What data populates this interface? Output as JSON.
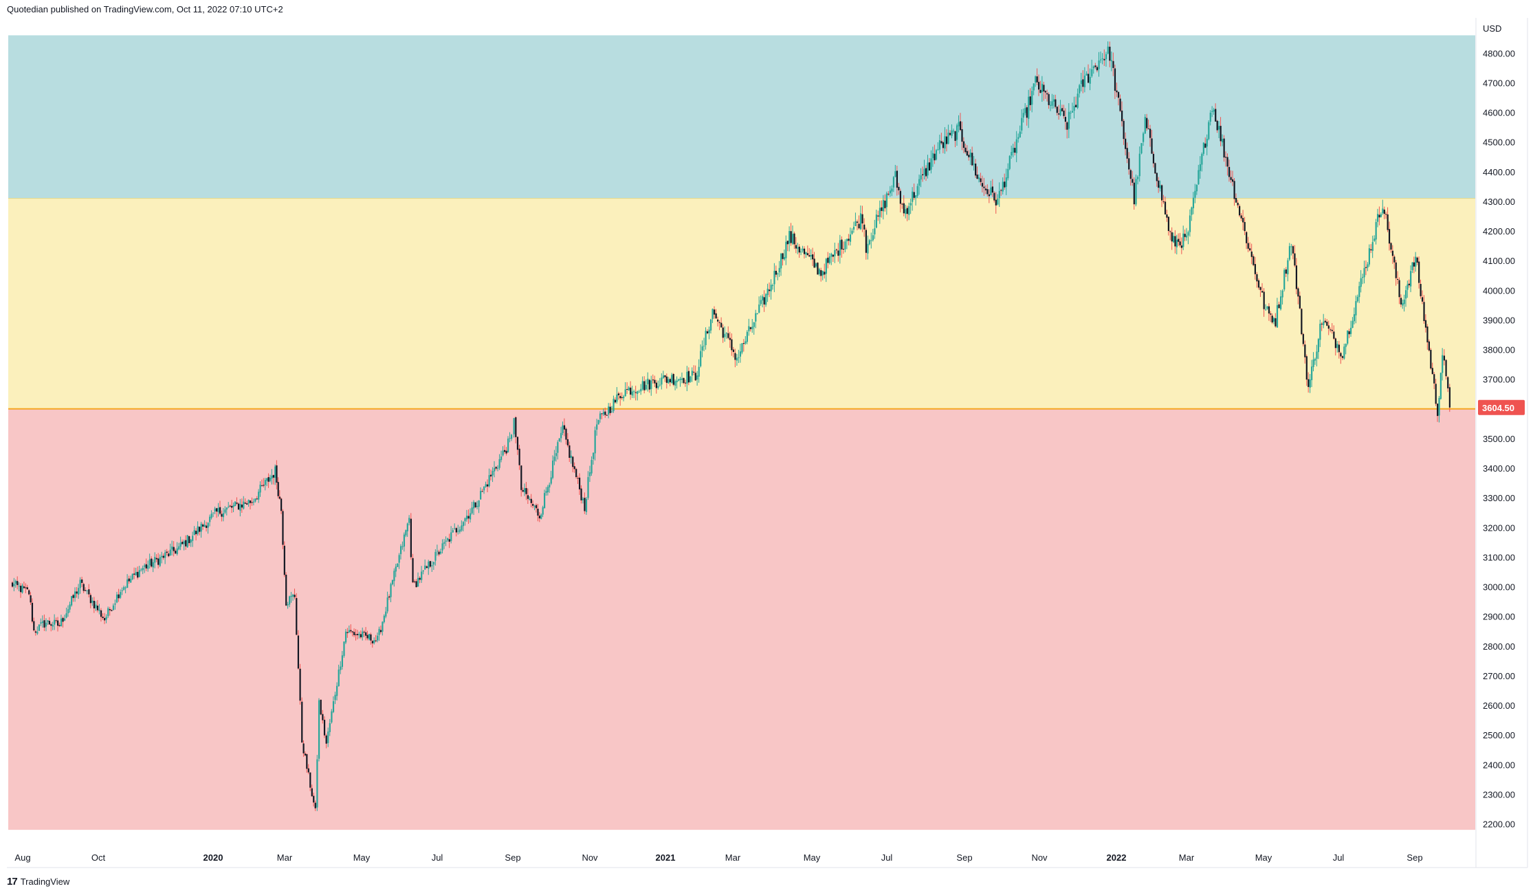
{
  "header": {
    "published_text": "Quotedian published on TradingView.com, Oct 11, 2022 07:10 UTC+2"
  },
  "footer": {
    "brand_mark": "17",
    "brand_name": "TradingView"
  },
  "colors": {
    "zone_top": "#b8dde0",
    "zone_mid": "#fbf0bc",
    "zone_low": "#f8c6c6",
    "up_candle": "#26a69a",
    "down_candle": "#ef5350",
    "candle_body": "#131722",
    "price_tag": "#ef5350"
  },
  "chart_data": {
    "type": "candlestick",
    "currency": "USD",
    "x_labels": [
      "Aug",
      "Oct",
      "2020",
      "Mar",
      "May",
      "Jul",
      "Sep",
      "Nov",
      "2021",
      "Mar",
      "May",
      "Jul",
      "Sep",
      "Nov",
      "2022",
      "Mar",
      "May",
      "Jul",
      "Sep"
    ],
    "x_labels_bold": [
      "2020",
      "2021",
      "2022"
    ],
    "y_ticks": [
      "4800.00",
      "4700.00",
      "4600.00",
      "4500.00",
      "4400.00",
      "4300.00",
      "4200.00",
      "4100.00",
      "4000.00",
      "3900.00",
      "3800.00",
      "3700.00",
      "3600.00",
      "3500.00",
      "3400.00",
      "3300.00",
      "3200.00",
      "3100.00",
      "3000.00",
      "2900.00",
      "2800.00",
      "2700.00",
      "2600.00",
      "2500.00",
      "2400.00",
      "2300.00",
      "2200.00"
    ],
    "y_tick_values": [
      4800,
      4700,
      4600,
      4500,
      4400,
      4300,
      4200,
      4100,
      4000,
      3900,
      3800,
      3700,
      3600,
      3500,
      3400,
      3300,
      3200,
      3100,
      3000,
      2900,
      2800,
      2700,
      2600,
      2500,
      2400,
      2300,
      2200
    ],
    "ylim": [
      2180,
      4860
    ],
    "x_range": [
      "2019-07-15",
      "2022-10-31"
    ],
    "last_price": 3604.5,
    "last_price_label": "3604.50",
    "zones": [
      {
        "name": "upper",
        "from": 4310,
        "to": 4860,
        "color": "#b8dde0"
      },
      {
        "name": "middle",
        "from": 3600,
        "to": 4310,
        "color": "#fbf0bc"
      },
      {
        "name": "lower",
        "from": 2180,
        "to": 3600,
        "color": "#f8c6c6"
      }
    ],
    "price_path": [
      [
        "2019-07-17",
        3010
      ],
      [
        "2019-08-01",
        2980
      ],
      [
        "2019-08-05",
        2850
      ],
      [
        "2019-08-15",
        2880
      ],
      [
        "2019-08-26",
        2870
      ],
      [
        "2019-09-12",
        3010
      ],
      [
        "2019-10-02",
        2890
      ],
      [
        "2019-10-15",
        2990
      ],
      [
        "2019-11-01",
        3060
      ],
      [
        "2019-12-02",
        3130
      ],
      [
        "2020-01-02",
        3250
      ],
      [
        "2020-01-31",
        3290
      ],
      [
        "2020-02-19",
        3390
      ],
      [
        "2020-02-24",
        3260
      ],
      [
        "2020-02-28",
        2950
      ],
      [
        "2020-03-06",
        2970
      ],
      [
        "2020-03-12",
        2480
      ],
      [
        "2020-03-16",
        2390
      ],
      [
        "2020-03-23",
        2240
      ],
      [
        "2020-03-26",
        2610
      ],
      [
        "2020-04-01",
        2470
      ],
      [
        "2020-04-17",
        2850
      ],
      [
        "2020-05-13",
        2820
      ],
      [
        "2020-06-08",
        3230
      ],
      [
        "2020-06-11",
        3000
      ],
      [
        "2020-07-01",
        3110
      ],
      [
        "2020-07-31",
        3270
      ],
      [
        "2020-08-31",
        3500
      ],
      [
        "2020-09-02",
        3580
      ],
      [
        "2020-09-08",
        3330
      ],
      [
        "2020-09-23",
        3240
      ],
      [
        "2020-10-12",
        3530
      ],
      [
        "2020-10-30",
        3270
      ],
      [
        "2020-11-09",
        3550
      ],
      [
        "2020-12-01",
        3660
      ],
      [
        "2021-01-04",
        3700
      ],
      [
        "2021-01-29",
        3710
      ],
      [
        "2021-02-12",
        3930
      ],
      [
        "2021-03-04",
        3770
      ],
      [
        "2021-04-01",
        4020
      ],
      [
        "2021-04-16",
        4180
      ],
      [
        "2021-05-12",
        4060
      ],
      [
        "2021-06-15",
        4250
      ],
      [
        "2021-06-18",
        4150
      ],
      [
        "2021-07-12",
        4380
      ],
      [
        "2021-07-19",
        4260
      ],
      [
        "2021-08-16",
        4480
      ],
      [
        "2021-09-02",
        4540
      ],
      [
        "2021-09-20",
        4360
      ],
      [
        "2021-10-04",
        4300
      ],
      [
        "2021-11-04",
        4700
      ],
      [
        "2021-11-30",
        4560
      ],
      [
        "2021-12-13",
        4700
      ],
      [
        "2021-12-29",
        4790
      ],
      [
        "2022-01-04",
        4800
      ],
      [
        "2022-01-24",
        4310
      ],
      [
        "2022-02-02",
        4570
      ],
      [
        "2022-02-24",
        4160
      ],
      [
        "2022-03-08",
        4170
      ],
      [
        "2022-03-29",
        4630
      ],
      [
        "2022-04-12",
        4400
      ],
      [
        "2022-04-29",
        4130
      ],
      [
        "2022-05-12",
        3930
      ],
      [
        "2022-05-20",
        3900
      ],
      [
        "2022-06-02",
        4170
      ],
      [
        "2022-06-16",
        3670
      ],
      [
        "2022-06-27",
        3900
      ],
      [
        "2022-07-14",
        3790
      ],
      [
        "2022-08-16",
        4300
      ],
      [
        "2022-08-31",
        3950
      ],
      [
        "2022-09-12",
        4110
      ],
      [
        "2022-09-30",
        3590
      ],
      [
        "2022-10-04",
        3790
      ],
      [
        "2022-10-10",
        3604.5
      ]
    ]
  }
}
